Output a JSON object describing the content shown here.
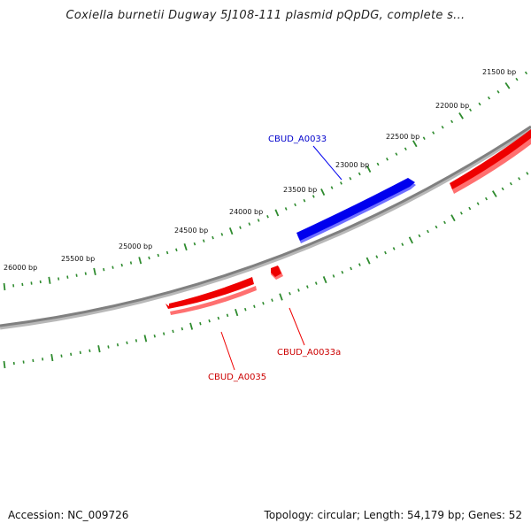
{
  "title": "Coxiella burnetii Dugway 5J108-111 plasmid pQpDG, complete s...",
  "footer": {
    "accession": "Accession: NC_009726",
    "summary": "Topology: circular; Length: 54,179 bp; Genes: 52"
  },
  "colors": {
    "backbone": "#808080",
    "ticks": "#2e8b2e",
    "forward_gene": "#0000ee",
    "reverse_gene": "#ee0000"
  },
  "tick_labels": [
    "21500 bp",
    "22000 bp",
    "22500 bp",
    "23000 bp",
    "23500 bp",
    "24000 bp",
    "24500 bp",
    "25000 bp",
    "25500 bp",
    "26000 bp"
  ],
  "genes": [
    {
      "name": "CBUD_A0033",
      "strand": "forward"
    },
    {
      "name": "CBUD_A0033a",
      "strand": "reverse"
    },
    {
      "name": "CBUD_A0035",
      "strand": "reverse"
    }
  ]
}
